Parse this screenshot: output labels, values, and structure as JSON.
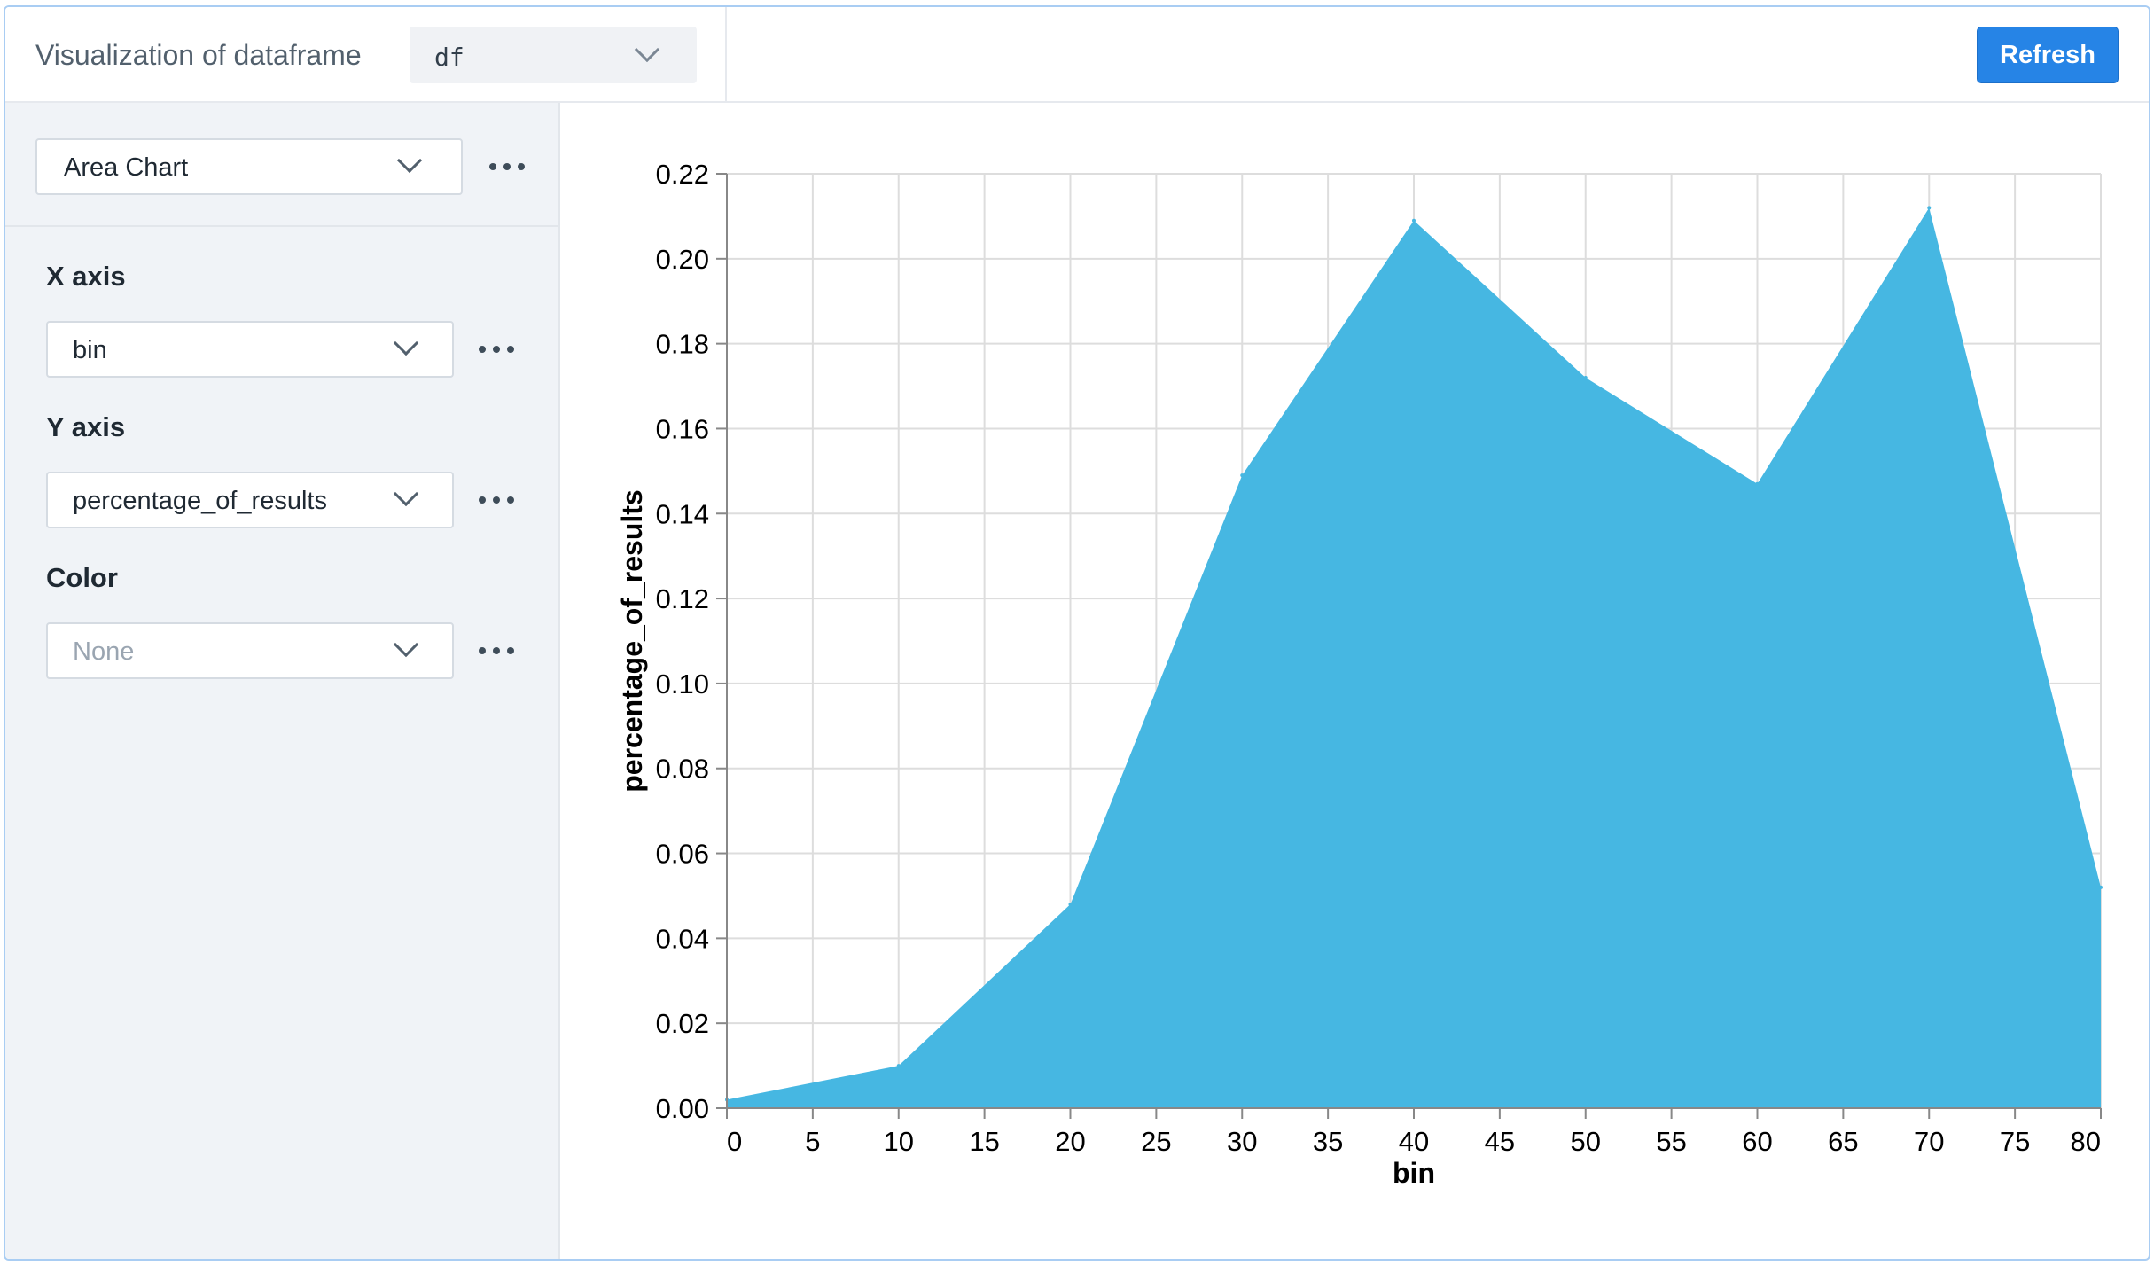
{
  "header": {
    "title": "Visualization of dataframe",
    "dataframe_value": "df",
    "refresh_label": "Refresh"
  },
  "sidebar": {
    "chart_type": "Area Chart",
    "x_axis": {
      "label": "X axis",
      "value": "bin"
    },
    "y_axis": {
      "label": "Y axis",
      "value": "percentage_of_results"
    },
    "color": {
      "label": "Color",
      "placeholder": "None"
    }
  },
  "colors": {
    "accent": "#2684e6",
    "area_fill": "#46b7e2",
    "grid": "#dddddd",
    "axis": "#888888"
  },
  "chart_data": {
    "type": "area",
    "xlabel": "bin",
    "ylabel": "percentage_of_results",
    "x": [
      0,
      10,
      20,
      30,
      40,
      50,
      60,
      70,
      80
    ],
    "values": [
      0.002,
      0.01,
      0.048,
      0.149,
      0.209,
      0.172,
      0.147,
      0.212,
      0.052
    ],
    "x_ticks": [
      "0",
      "5",
      "10",
      "15",
      "20",
      "25",
      "30",
      "35",
      "40",
      "45",
      "50",
      "55",
      "60",
      "65",
      "70",
      "75",
      "80"
    ],
    "y_ticks": [
      "0.00",
      "0.02",
      "0.04",
      "0.06",
      "0.08",
      "0.10",
      "0.12",
      "0.14",
      "0.16",
      "0.18",
      "0.20",
      "0.22"
    ],
    "xlim": [
      0,
      80
    ],
    "ylim": [
      0,
      0.22
    ],
    "grid": true
  }
}
